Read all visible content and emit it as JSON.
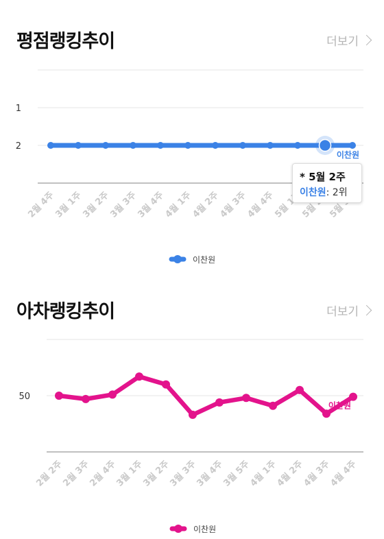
{
  "sections": [
    {
      "title": "평점랭킹추이",
      "more_label": "더보기"
    },
    {
      "title": "아차랭킹추이",
      "more_label": "더보기"
    }
  ],
  "chart_data": [
    {
      "type": "line",
      "title": "평점랭킹추이",
      "categories": [
        "2월 4주",
        "3월 1주",
        "3월 2주",
        "3월 3주",
        "3월 4주",
        "4월 1주",
        "4월 2주",
        "4월 3주",
        "4월 4주",
        "5월 1주",
        "5월 2주",
        "5월 3주"
      ],
      "series": [
        {
          "name": "이찬원",
          "values": [
            2,
            2,
            2,
            2,
            2,
            2,
            2,
            2,
            2,
            2,
            2,
            2
          ],
          "color": "#3b82e6"
        }
      ],
      "y_ticks": [
        1,
        2
      ],
      "y_reversed": true,
      "ylim": [
        0,
        3
      ],
      "grid": true,
      "legend": "bottom-center",
      "end_label": "이찬원",
      "tooltip": {
        "title": "* 5월 2주",
        "series_name": "이찬원",
        "value_text": ": 2위",
        "index": 10
      }
    },
    {
      "type": "line",
      "title": "아차랭킹추이",
      "categories": [
        "2월 2주",
        "2월 3주",
        "2월 4주",
        "3월 1주",
        "3월 2주",
        "3월 3주",
        "3월 4주",
        "3월 5주",
        "4월 1주",
        "4월 2주",
        "4월 3주",
        "4월 4주"
      ],
      "series": [
        {
          "name": "이찬원",
          "values": [
            50,
            47,
            51,
            67,
            60,
            33,
            44,
            48,
            41,
            55,
            34,
            49
          ],
          "color": "#e3138c"
        }
      ],
      "y_ticks": [
        50
      ],
      "ylim": [
        0,
        100
      ],
      "grid": true,
      "legend": "bottom-center",
      "end_label": "이찬원"
    }
  ]
}
